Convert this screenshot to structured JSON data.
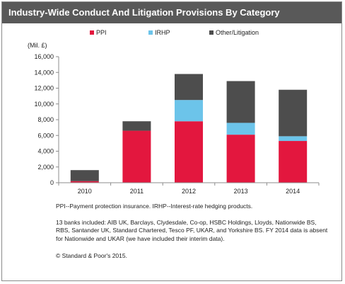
{
  "page": {
    "title": "Industry-Wide Conduct And Litigation Provisions By Category"
  },
  "chart_data": {
    "type": "bar",
    "stacked": true,
    "title": "Industry-Wide Conduct And Litigation Provisions By Category",
    "ylabel": "(Mil. £)",
    "xlabel": "",
    "categories": [
      "2010",
      "2011",
      "2012",
      "2013",
      "2014"
    ],
    "ylim": [
      0,
      16000
    ],
    "yticks": [
      0,
      2000,
      4000,
      6000,
      8000,
      10000,
      12000,
      14000,
      16000
    ],
    "ytick_labels": [
      "0",
      "2,000",
      "4,000",
      "6,000",
      "8,000",
      "10,000",
      "12,000",
      "14,000",
      "16,000"
    ],
    "grid": false,
    "legend_position": "top",
    "series": [
      {
        "name": "PPI",
        "color": "#e3173e",
        "values": [
          200,
          6600,
          7800,
          6100,
          5300
        ]
      },
      {
        "name": "IRHP",
        "color": "#6cc4ea",
        "values": [
          0,
          0,
          2700,
          1500,
          600
        ]
      },
      {
        "name": "Other/Litigation",
        "color": "#4d4d4d",
        "values": [
          1400,
          1200,
          3300,
          5300,
          5900
        ]
      }
    ]
  },
  "notes": {
    "abbreviations": "PPI--Payment protection insurance. IRHP--Interest-rate hedging products.",
    "banks": "13 banks included: AIB UK, Barclays, Clydesdale, Co-op, HSBC Holdings, Lloyds, Nationwide BS, RBS, Santander UK, Standard Chartered, Tesco PF, UKAR, and Yorkshire BS. FY 2014 data is absent for Nationwide and UKAR (we have included their interim data).",
    "copyright": "© Standard & Poor's 2015."
  }
}
